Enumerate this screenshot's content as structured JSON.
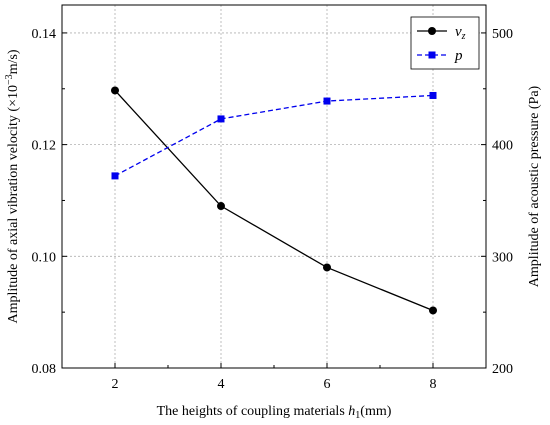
{
  "chart_data": {
    "type": "line",
    "x": [
      2,
      4,
      6,
      8
    ],
    "xlim": [
      1,
      9
    ],
    "xticks": [
      "2",
      "4",
      "6",
      "8"
    ],
    "xlabel": {
      "prefix": "The heights of coupling materials ",
      "var": "h",
      "sub": "1",
      "suffix": "(mm)"
    },
    "ylim_left": [
      0.08,
      0.145
    ],
    "yticks_left": [
      "0.08",
      "0.10",
      "0.12",
      "0.14"
    ],
    "ylabel_left": {
      "prefix": "Amplitude of axial vibration velocity (×10",
      "sup": "−3",
      "suffix": "m/s)"
    },
    "ylim_right": [
      200,
      525
    ],
    "yticks_right": [
      "200",
      "300",
      "400",
      "500"
    ],
    "ylabel_right": "Amplitude of acoustic pressure (Pa)",
    "grid": true,
    "legend_position": "top-right",
    "series": [
      {
        "name": "v",
        "name_sub": "z",
        "axis": "left",
        "values": [
          0.1297,
          0.109,
          0.098,
          0.0903
        ],
        "color": "#000000",
        "line_style": "solid",
        "marker": "circle"
      },
      {
        "name": "p",
        "axis": "right",
        "values": [
          372,
          423,
          439,
          444
        ],
        "color": "#0000ee",
        "line_style": "dashed",
        "marker": "square"
      }
    ]
  }
}
